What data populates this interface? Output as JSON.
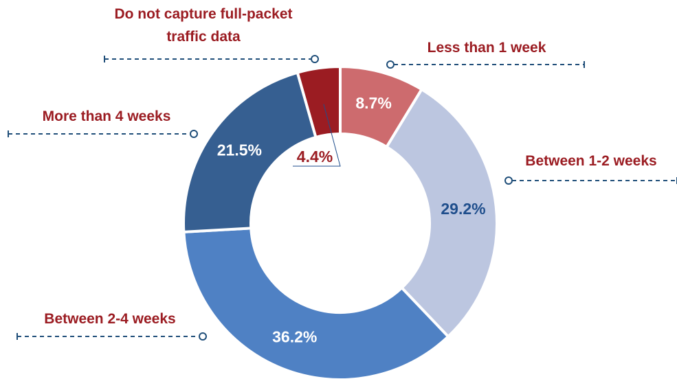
{
  "chart_data": {
    "type": "donut",
    "categories": [
      "Less than 1 week",
      "Between 1-2 weeks",
      "Between 2-4 weeks",
      "More than 4 weeks",
      "Do not capture full-packet traffic data"
    ],
    "values": [
      8.7,
      29.2,
      36.2,
      21.5,
      4.4
    ],
    "value_labels": [
      "8.7%",
      "29.2%",
      "36.2%",
      "21.5%",
      "4.4%"
    ],
    "colors": [
      "#cd6b6e",
      "#bcc6e0",
      "#4f81c4",
      "#365f91",
      "#9b1c22"
    ],
    "label_colors": [
      "#ffffff",
      "#1f4e8c",
      "#ffffff",
      "#ffffff",
      "#9b1c22"
    ]
  }
}
